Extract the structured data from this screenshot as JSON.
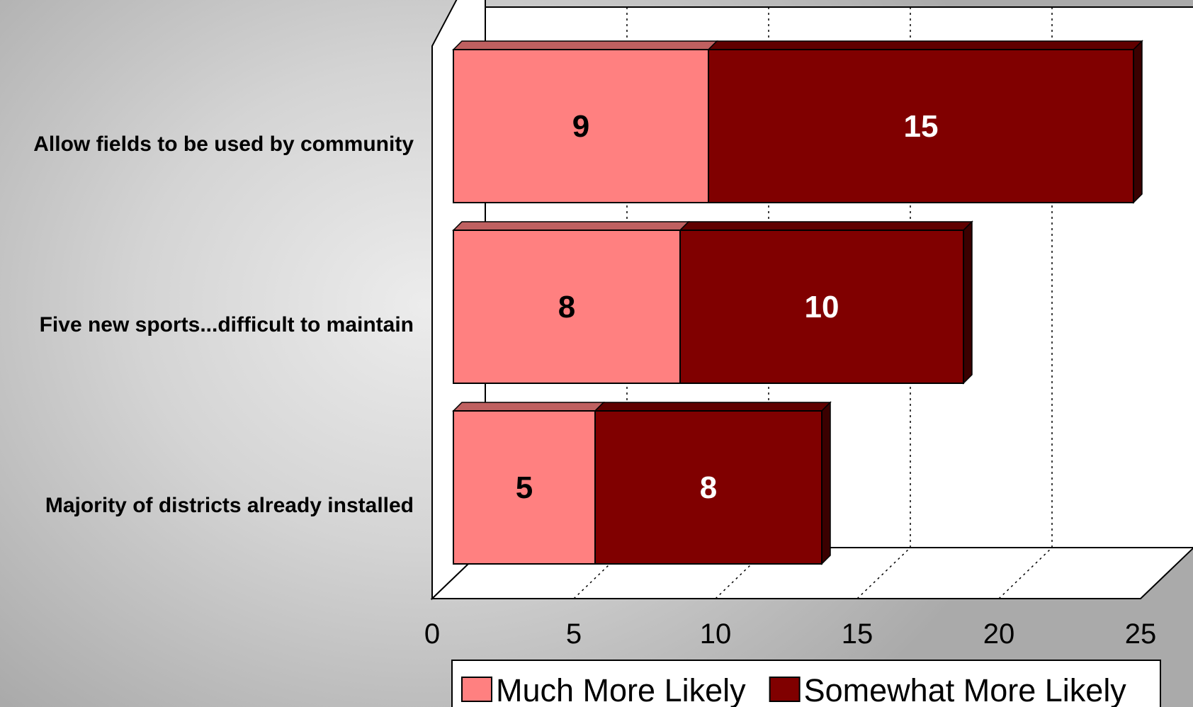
{
  "chart_data": {
    "type": "bar",
    "orientation": "horizontal",
    "stacked": true,
    "style": "3d",
    "categories": [
      "Allow fields to be used by community",
      "Five new sports...difficult to maintain",
      "Majority of districts already installed"
    ],
    "series": [
      {
        "name": "Much More Likely",
        "values": [
          9,
          8,
          5
        ],
        "color": "#ff8080"
      },
      {
        "name": "Somewhat More Likely",
        "values": [
          15,
          10,
          8
        ],
        "color": "#800000"
      }
    ],
    "xlim": [
      0,
      25
    ],
    "xticks": [
      0,
      5,
      10,
      15,
      20,
      25
    ],
    "grid": "vertical dotted",
    "legend": "bottom"
  }
}
